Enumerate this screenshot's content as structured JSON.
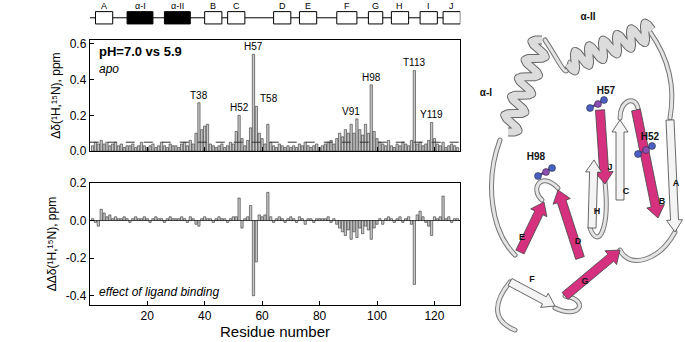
{
  "chart_data": [
    {
      "type": "bar",
      "title": "pH=7.0 vs 5.9",
      "subtitle": "apo",
      "y_label": "Δδ(¹H,¹⁵N), ppm",
      "x": [
        1,
        2,
        3,
        4,
        5,
        6,
        7,
        8,
        9,
        10,
        11,
        12,
        13,
        14,
        15,
        16,
        17,
        18,
        19,
        20,
        21,
        22,
        23,
        24,
        25,
        26,
        27,
        28,
        29,
        30,
        31,
        32,
        33,
        34,
        35,
        36,
        37,
        38,
        39,
        40,
        41,
        42,
        43,
        44,
        45,
        46,
        47,
        48,
        49,
        50,
        51,
        52,
        53,
        54,
        55,
        56,
        57,
        58,
        59,
        60,
        61,
        62,
        63,
        64,
        65,
        66,
        67,
        68,
        69,
        70,
        71,
        72,
        73,
        74,
        75,
        76,
        77,
        78,
        79,
        80,
        81,
        82,
        83,
        84,
        85,
        86,
        87,
        88,
        89,
        90,
        91,
        92,
        93,
        94,
        95,
        96,
        97,
        98,
        99,
        100,
        101,
        102,
        103,
        104,
        105,
        106,
        107,
        108,
        109,
        110,
        111,
        112,
        113,
        114,
        115,
        116,
        117,
        118,
        119,
        120,
        121,
        122,
        123,
        124,
        125,
        126,
        127,
        128
      ],
      "values": [
        0.03,
        0.05,
        0.04,
        0.06,
        0.04,
        0.05,
        0.03,
        0.04,
        0.05,
        0.03,
        0.04,
        0.02,
        0.03,
        0.03,
        0.04,
        0.02,
        0.03,
        0.05,
        0.03,
        0.02,
        0.03,
        0.04,
        0.02,
        0.03,
        0.05,
        0.03,
        0.02,
        0.04,
        0.03,
        0.03,
        0.02,
        0.04,
        0.05,
        0.03,
        0.06,
        0.04,
        0.1,
        0.27,
        0.12,
        0.14,
        0.15,
        0.04,
        0.03,
        0.02,
        0.03,
        0.04,
        0.02,
        0.03,
        0.05,
        0.04,
        0.11,
        0.2,
        0.07,
        0.03,
        0.06,
        0.13,
        0.54,
        0.25,
        0.1,
        0.07,
        0.04,
        0.15,
        0.05,
        0.03,
        0.02,
        0.04,
        0.03,
        0.02,
        0.03,
        0.02,
        0.03,
        0.02,
        0.04,
        0.03,
        0.05,
        0.03,
        0.02,
        0.03,
        0.04,
        0.02,
        0.03,
        0.04,
        0.05,
        0.06,
        0.04,
        0.07,
        0.1,
        0.08,
        0.12,
        0.1,
        0.15,
        0.1,
        0.18,
        0.12,
        0.09,
        0.15,
        0.1,
        0.37,
        0.11,
        0.07,
        0.05,
        0.04,
        0.03,
        0.06,
        0.03,
        0.02,
        0.04,
        0.03,
        0.05,
        0.04,
        0.03,
        0.06,
        0.45,
        0.04,
        0.05,
        0.03,
        0.04,
        0.06,
        0.16,
        0.07,
        0.04,
        0.03,
        0.05,
        0.02,
        0.03,
        0.04,
        0.03,
        0.02
      ],
      "color": "#c8c8c8",
      "xlim": [
        0,
        129
      ],
      "xticks": [
        20,
        40,
        60,
        80,
        100,
        120
      ],
      "ylim": [
        0,
        0.62
      ],
      "yticks": [
        {
          "value": 0,
          "label": "0.0"
        },
        0.2,
        0.4,
        0.6
      ],
      "tick_labels": "y",
      "threshold": 0.05,
      "annotations": [
        {
          "text": "T38",
          "x": 38
        },
        {
          "text": "H52",
          "x": 52
        },
        {
          "text": "H57",
          "x": 57
        },
        {
          "text": "T58",
          "x": 58
        },
        {
          "text": "V91",
          "x": 91
        },
        {
          "text": "H98",
          "x": 98
        },
        {
          "text": "T113",
          "x": 113
        },
        {
          "text": "Y119",
          "x": 119
        }
      ]
    },
    {
      "type": "bar",
      "title": "effect of ligand binding",
      "x_label": "Residue number",
      "y_label": "ΔΔδ(¹H,¹⁵N), ppm",
      "x": [
        1,
        2,
        3,
        4,
        5,
        6,
        7,
        8,
        9,
        10,
        11,
        12,
        13,
        14,
        15,
        16,
        17,
        18,
        19,
        20,
        21,
        22,
        23,
        24,
        25,
        26,
        27,
        28,
        29,
        30,
        31,
        32,
        33,
        34,
        35,
        36,
        37,
        38,
        39,
        40,
        41,
        42,
        43,
        44,
        45,
        46,
        47,
        48,
        49,
        50,
        51,
        52,
        53,
        54,
        55,
        56,
        57,
        58,
        59,
        60,
        61,
        62,
        63,
        64,
        65,
        66,
        67,
        68,
        69,
        70,
        71,
        72,
        73,
        74,
        75,
        76,
        77,
        78,
        79,
        80,
        81,
        82,
        83,
        84,
        85,
        86,
        87,
        88,
        89,
        90,
        91,
        92,
        93,
        94,
        95,
        96,
        97,
        98,
        99,
        100,
        101,
        102,
        103,
        104,
        105,
        106,
        107,
        108,
        109,
        110,
        111,
        112,
        113,
        114,
        115,
        116,
        117,
        118,
        119,
        120,
        121,
        122,
        123,
        124,
        125,
        126,
        127,
        128
      ],
      "values": [
        0.01,
        -0.01,
        -0.03,
        0.06,
        0.04,
        0.02,
        0.03,
        0.01,
        0.02,
        0.01,
        0.01,
        0.02,
        0.01,
        -0.01,
        0.01,
        0.02,
        0.01,
        0.01,
        0.02,
        0.01,
        -0.01,
        0.01,
        0.02,
        0.01,
        0.01,
        -0.01,
        0.01,
        0.02,
        0.01,
        0.01,
        0.01,
        0.02,
        0.01,
        -0.01,
        0.02,
        0.01,
        -0.02,
        -0.03,
        0.01,
        0.02,
        0.01,
        0.01,
        -0.01,
        0.01,
        0.02,
        0.01,
        0.01,
        -0.01,
        0.01,
        0.02,
        0.02,
        0.12,
        -0.04,
        0.01,
        0.02,
        0.08,
        -0.4,
        -0.22,
        0.03,
        0.02,
        0.03,
        0.15,
        0.02,
        -0.01,
        0.01,
        0.02,
        0.01,
        -0.01,
        0.01,
        0.02,
        0.01,
        -0.01,
        0.02,
        0.01,
        -0.02,
        0.01,
        0.01,
        -0.01,
        0.01,
        0.01,
        0.01,
        0.01,
        0.02,
        -0.01,
        0.01,
        -0.02,
        -0.04,
        -0.06,
        -0.08,
        -0.05,
        -0.1,
        -0.06,
        -0.09,
        -0.04,
        -0.07,
        -0.03,
        -0.05,
        -0.1,
        -0.04,
        -0.02,
        0.01,
        -0.02,
        0.01,
        0.02,
        0.01,
        -0.01,
        0.01,
        0.02,
        -0.01,
        0.01,
        0.02,
        -0.02,
        -0.34,
        0.03,
        0.05,
        0.02,
        -0.01,
        -0.03,
        -0.08,
        0.02,
        0.01,
        0.02,
        0.13,
        0.01,
        0.02,
        -0.01,
        0.01,
        0.01
      ],
      "color": "#c8c8c8",
      "xlim": [
        0,
        129
      ],
      "xticks": [
        20,
        40,
        60,
        80,
        100,
        120
      ],
      "ylim": [
        -0.45,
        0.2
      ],
      "yticks": [
        -0.4,
        -0.2,
        {
          "value": 0,
          "label": "0.0"
        },
        0.2
      ]
    }
  ],
  "secondary_structure": [
    {
      "label": "A",
      "start": 2,
      "end": 8,
      "type": "strand"
    },
    {
      "label": "α-I",
      "start": 13,
      "end": 22,
      "type": "helix"
    },
    {
      "label": "α-II",
      "start": 26,
      "end": 35,
      "type": "helix"
    },
    {
      "label": "B",
      "start": 40,
      "end": 46,
      "type": "strand"
    },
    {
      "label": "C",
      "start": 48,
      "end": 54,
      "type": "strand"
    },
    {
      "label": "D",
      "start": 64,
      "end": 70,
      "type": "strand"
    },
    {
      "label": "E",
      "start": 73,
      "end": 79,
      "type": "strand"
    },
    {
      "label": "F",
      "start": 86,
      "end": 93,
      "type": "strand"
    },
    {
      "label": "G",
      "start": 97,
      "end": 102,
      "type": "strand"
    },
    {
      "label": "H",
      "start": 105,
      "end": 111,
      "type": "strand"
    },
    {
      "label": "I",
      "start": 115,
      "end": 121,
      "type": "strand"
    },
    {
      "label": "J",
      "start": 123,
      "end": 129,
      "type": "strand"
    }
  ],
  "structure_labels": [
    "α-I",
    "α-II",
    "H57",
    "H52",
    "H98",
    "J",
    "C",
    "B",
    "A",
    "E",
    "H",
    "D",
    "F",
    "G"
  ]
}
